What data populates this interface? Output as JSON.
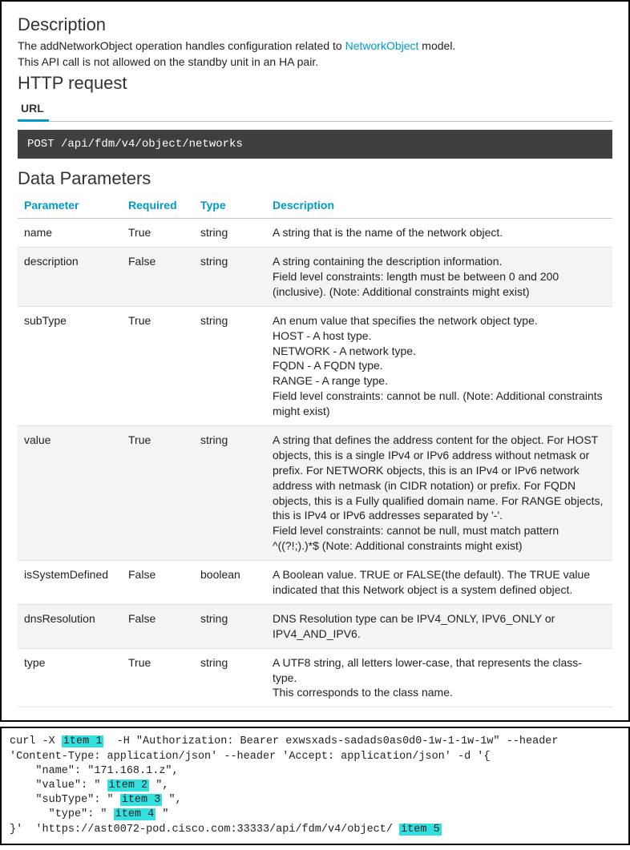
{
  "doc": {
    "description_heading": "Description",
    "description_line1_pre": "The addNetworkObject operation handles configuration related to ",
    "description_link": "NetworkObject",
    "description_line1_post": " model.",
    "description_line2": "This API call is not allowed on the standby unit in an HA pair.",
    "http_request_heading": "HTTP request",
    "tab_url": "URL",
    "endpoint": "POST /api/fdm/v4/object/networks",
    "data_params_heading": "Data Parameters"
  },
  "table": {
    "headers": {
      "param": "Parameter",
      "required": "Required",
      "type": "Type",
      "desc": "Description"
    },
    "rows": [
      {
        "param": "name",
        "required": "True",
        "type": "string",
        "desc": "A string that is the name of the network object.",
        "alt": false
      },
      {
        "param": "description",
        "required": "False",
        "type": "string",
        "desc": "A string containing the description information.\nField level constraints: length must be between 0 and 200 (inclusive). (Note: Additional constraints might exist)",
        "alt": true
      },
      {
        "param": "subType",
        "required": "True",
        "type": "string",
        "desc": "An enum value that specifies the network object type.\nHOST - A host type.\nNETWORK - A network type.\nFQDN - A FQDN type.\nRANGE - A range type.\nField level constraints: cannot be null. (Note: Additional constraints might exist)",
        "alt": false
      },
      {
        "param": "value",
        "required": "True",
        "type": "string",
        "desc": "A string that defines the address content for the object. For HOST objects, this is a single IPv4 or IPv6 address without netmask or prefix. For NETWORK objects, this is an IPv4 or IPv6 network address with netmask (in CIDR notation) or prefix. For FQDN objects, this is a Fully qualified domain name. For RANGE objects, this is IPv4 or IPv6 addresses separated by '-'.\nField level constraints: cannot be null, must match pattern ^((?!;).)*$ (Note: Additional constraints might exist)",
        "alt": true
      },
      {
        "param": "isSystemDefined",
        "required": "False",
        "type": "boolean",
        "desc": "A Boolean value. TRUE or FALSE(the default). The TRUE value indicated that this Network object is a system defined object.",
        "alt": false
      },
      {
        "param": "dnsResolution",
        "required": "False",
        "type": "string",
        "desc": "DNS Resolution type can be IPV4_ONLY, IPV6_ONLY or IPV4_AND_IPV6.",
        "alt": true
      },
      {
        "param": "type",
        "required": "True",
        "type": "string",
        "desc": "A UTF8 string, all letters lower-case, that represents the class-type.\nThis corresponds to the class name.",
        "alt": false
      }
    ]
  },
  "curl": {
    "p0": "curl -X ",
    "i1": "item 1",
    "p1": "  -H \"Authorization: Bearer exwsxads-sadads0as0d0-1w-1-1w-1w\" --header",
    "line2": "'Content-Type: application/json' --header 'Accept: application/json' -d '{",
    "line3": "    \"name\": \"171.168.1.z\",",
    "line4a": "    \"value\": \" ",
    "i2": "item 2",
    "line4b": " \",",
    "line5a": "    \"subType\": \" ",
    "i3": "item 3",
    "line5b": " \",",
    "line6a": "      \"type\": \" ",
    "i4": "item 4",
    "line6b": " \"",
    "line7a": "}'  'https://ast0072-pod.cisco.com:33333/api/fdm/v4/object/ ",
    "i5": "item 5"
  },
  "colors": {
    "accent": "#0099cc",
    "highlight": "#33e0e0",
    "endpoint_bg": "#3f3f3f",
    "alt_row": "#f4f4f4",
    "border": "#000000"
  }
}
